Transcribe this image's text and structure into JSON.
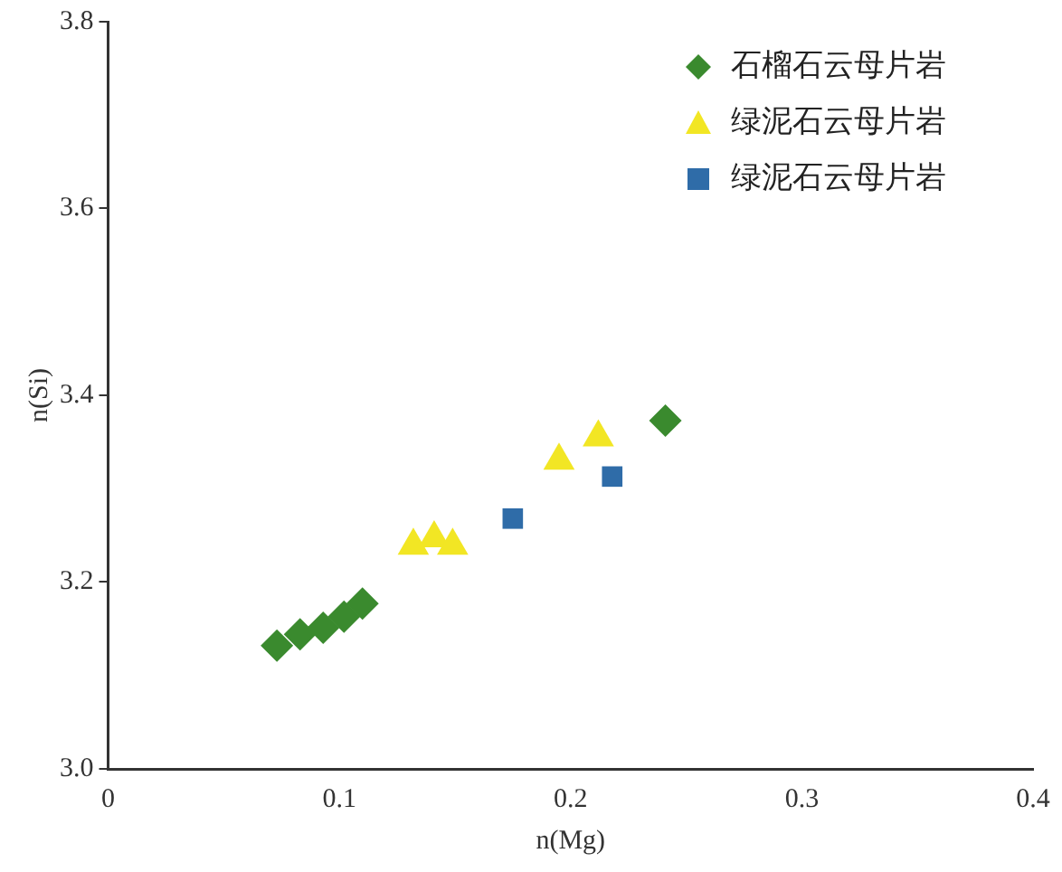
{
  "chart_data": {
    "type": "scatter",
    "xlabel": "n(Mg)",
    "ylabel": "n(Si)",
    "xlim": [
      0,
      0.4
    ],
    "ylim": [
      3.0,
      3.8
    ],
    "xticks": [
      0,
      0.1,
      0.2,
      0.3,
      0.4
    ],
    "yticks": [
      {
        "value": 3.0,
        "label": "3.0"
      },
      {
        "value": 3.2,
        "label": "3.2"
      },
      {
        "value": 3.4,
        "label": "3.4"
      },
      {
        "value": 3.6,
        "label": "3.6"
      },
      {
        "value": 3.8,
        "label": "3.8"
      }
    ],
    "grid": false,
    "legend": "top right",
    "series": [
      {
        "name": "石榴石云母片岩",
        "color": "#3a8a2e",
        "marker": "diamond",
        "x": [
          0.073,
          0.083,
          0.093,
          0.102,
          0.11,
          0.241
        ],
        "values": [
          3.132,
          3.144,
          3.151,
          3.163,
          3.177,
          3.373
        ]
      },
      {
        "name": "绿泥石云母片岩",
        "color": "#f2e624",
        "marker": "triangle",
        "x": [
          0.132,
          0.141,
          0.149,
          0.195,
          0.212
        ],
        "values": [
          3.239,
          3.247,
          3.239,
          3.33,
          3.355
        ]
      },
      {
        "name": "绿泥石云母片岩",
        "color": "#2f6ca8",
        "marker": "square",
        "x": [
          0.175,
          0.218
        ],
        "values": [
          3.268,
          3.313
        ]
      }
    ]
  }
}
